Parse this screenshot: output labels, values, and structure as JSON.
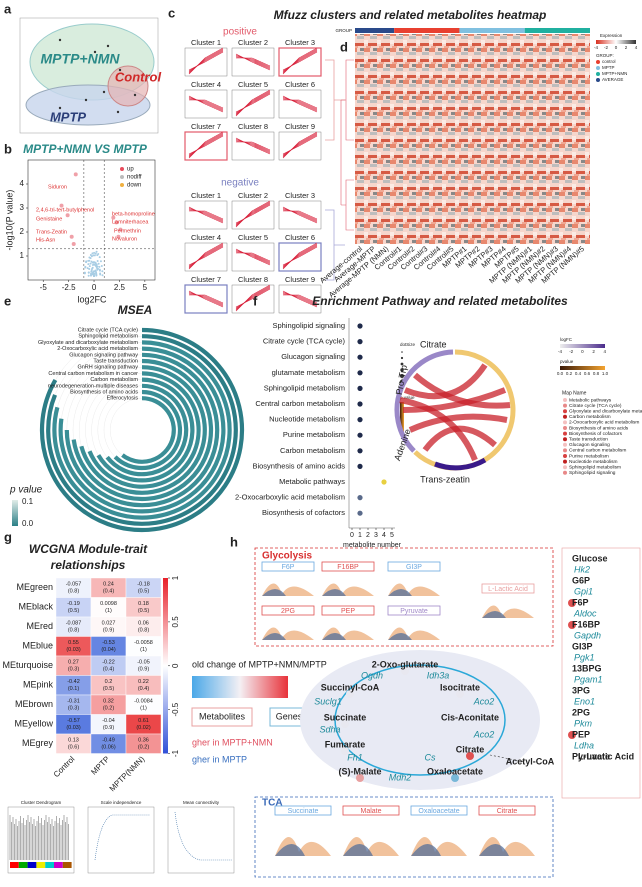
{
  "a": {
    "letter": "a",
    "groups": [
      "MPTP+NMN",
      "Control",
      "MPTP"
    ]
  },
  "b": {
    "letter": "b",
    "title": "MPTP+NMN VS MPTP",
    "legend": [
      "up",
      "nodiff",
      "down"
    ],
    "ylabel": "-log10(P value)",
    "xlabel": "log2FC",
    "xlim": [
      -6.5,
      6
    ],
    "ylim": [
      0,
      5
    ],
    "xticks": [
      -5,
      -2.5,
      0,
      2.5,
      5
    ],
    "yticks": [
      1,
      2,
      3,
      4
    ],
    "labels": [
      "Siduron",
      "2,4,6-tri-tert-butylphenol",
      "Genistaine",
      "Trans-Zeatin",
      "His-Asn",
      "beta-homoproline",
      "Lamniterhacea",
      "Permethrin",
      "Novaluron"
    ]
  },
  "c": {
    "letter": "c",
    "title": "Mfuzz clusters and related metabolites heatmap",
    "positive": "positive",
    "negative": "negative",
    "clusters": [
      "Cluster 1",
      "Cluster 2",
      "Cluster 3",
      "Cluster 4",
      "Cluster 5",
      "Cluster 6",
      "Cluster 7",
      "Cluster 8",
      "Cluster 9"
    ]
  },
  "d": {
    "letter": "d",
    "group_label": "GROUP",
    "columns": [
      "Average-control",
      "Average-MPTP",
      "Average-MPTP (NMN)",
      "Control#1",
      "Control#2",
      "Control#3",
      "Control#4",
      "Control#5",
      "MPTP#1",
      "MPTP#2",
      "MPTP#3",
      "MPTP#4",
      "MPTP#5",
      "MPTP (NMN)#1",
      "MPTP (NMN)#2",
      "MPTP (NMN)#3",
      "MPTP (NMN)#4",
      "MPTP (NMN)#5"
    ],
    "legend_title": "Expression",
    "legend_ticks": [
      -4,
      -2,
      0,
      2,
      4
    ],
    "group_title": "GROUP:",
    "groups": [
      "control",
      "MPTP",
      "MPTP+NMN",
      "AVERAGE"
    ]
  },
  "e": {
    "letter": "e",
    "title": "MSEA",
    "pathways": [
      "Citrate cycle (TCA cycle)",
      "Sphingolipid metabolism",
      "Glyoxylate and dicarboxylate metabolism",
      "2-Oxocarboxylic acid metabolism",
      "Glucagon signaling pathway",
      "Taste transduction",
      "GnRH signaling pathway",
      "Central carbon metabolism in cancer",
      "Carbon metabolism",
      "neurodegeneration-multiple diseases",
      "Biosynthesis of amino acids",
      "Efferocytosis"
    ],
    "legend_title": "p value",
    "legend_labels": [
      "0.1",
      "0.0"
    ]
  },
  "f": {
    "letter": "f",
    "title": "Enrichment Pathway and related metabolites",
    "pathways": [
      "Sphingolipid signaling",
      "Citrate cycle (TCA cycle)",
      "Glucagon signaling",
      "glutamate metabolism",
      "Sphingolipid metabolism",
      "Central carbon metabolism",
      "Nucleotide metabolism",
      "Purine metabolism",
      "Carbon metabolism",
      "Biosynthesis of amino acids",
      "Metabolic pathways",
      "2-Oxocarboxylic acid metabolism",
      "Biosynthesis of cofactors"
    ],
    "counts": [
      1,
      1,
      1,
      1,
      1,
      1,
      1,
      1,
      1,
      1,
      4,
      1,
      1
    ],
    "xlim": [
      0,
      5
    ],
    "xticks": [
      0,
      1,
      2,
      3,
      4,
      5
    ],
    "xlabel": "metabolite number",
    "size_title": "dotSize",
    "color_title": "p.value",
    "chord": [
      "Citrate",
      "Pro-Trp",
      "Adenine",
      "Trans-zeatin"
    ],
    "logfc_title": "logFC",
    "logfc_ticks": [
      -4,
      -2,
      0,
      2,
      4
    ],
    "pvalue_title": "pvalue",
    "pvalue_labels": [
      "0.0",
      "0.2",
      "0.4",
      "0.6",
      "0.8",
      "1.0"
    ],
    "map_title": "Map Name",
    "map_names": [
      "Metabolic pathways",
      "Citrate cycle (TCA cycle)",
      "Glyoxylate and dicarboxylate metabolism",
      "Carbon metabolism",
      "2-Oxocarboxylic acid metabolism",
      "Biosynthesis of amino acids",
      "Biosynthesis of cofactors",
      "Taste transduction",
      "Glucagon signaling",
      "Central carbon metabolism",
      "Purine metabolism",
      "Nucleotide metabolism",
      "Sphingolipid metabolism",
      "Sphingolipid signaling"
    ]
  },
  "g": {
    "letter": "g",
    "title": [
      "WCGNA Module-trait",
      "relationships"
    ],
    "columns": [
      "Control",
      "MPTP",
      "MPTP(NMN)"
    ],
    "modules": [
      "MEgreen",
      "MEblack",
      "MEred",
      "MEblue",
      "MEturquoise",
      "MEpink",
      "MEbrown",
      "MEyellow",
      "MEgrey"
    ],
    "cor": [
      [
        -0.057,
        0.24,
        -0.18
      ],
      [
        -0.19,
        0.0098,
        0.18
      ],
      [
        -0.087,
        0.027,
        0.06
      ],
      [
        0.55,
        -0.53,
        -0.0058
      ],
      [
        0.27,
        -0.22,
        -0.05
      ],
      [
        -0.42,
        0.2,
        0.22
      ],
      [
        -0.31,
        0.32,
        -0.0084
      ],
      [
        -0.57,
        -0.04,
        0.61
      ],
      [
        0.13,
        -0.49,
        0.36
      ]
    ],
    "p": [
      [
        "(0.8)",
        "(0.4)",
        "(0.5)"
      ],
      [
        "(0.5)",
        "(1)",
        "(0.5)"
      ],
      [
        "(0.8)",
        "(0.9)",
        "(0.8)"
      ],
      [
        "(0.03)",
        "(0.04)",
        "(1)"
      ],
      [
        "(0.3)",
        "(0.4)",
        "(0.9)"
      ],
      [
        "(0.1)",
        "(0.5)",
        "(0.4)"
      ],
      [
        "(0.3)",
        "(0.2)",
        "(1)"
      ],
      [
        "(0.03)",
        "(0.9)",
        "(0.02)"
      ],
      [
        "(0.6)",
        "(0.06)",
        "(0.2)"
      ]
    ],
    "scale_ticks": [
      1,
      0.5,
      0,
      -0.5,
      -1
    ],
    "subplots": [
      "Cluster Dendrogram",
      "Scale independence",
      "Mean connectivity"
    ]
  },
  "h": {
    "letter": "h",
    "glycolysis_title": "Glycolysis",
    "glycolysis_boxes": [
      "F6P",
      "F16BP",
      "GI3P",
      "L-Lactic Acid",
      "2PG",
      "PEP",
      "Pyruvate"
    ],
    "chain_metabolites": [
      "Glucose",
      "G6P",
      "F6P",
      "F16BP",
      "GI3P",
      "13BPG",
      "3PG",
      "2PG",
      "PEP",
      "Pyruvate",
      "L-Lactic Acid"
    ],
    "chain_genes": [
      "Hk2",
      "Gpi1",
      "Aldoc",
      "Gapdh",
      "Pgk1",
      "Pgam1",
      "Eno1",
      "Pkm",
      "Ldha"
    ],
    "legend_title": "old change of MPTP+NMN/MPTP",
    "legend_metabolites": "Metabolites",
    "legend_genes": "Genes",
    "higher_nmn": "gher in MPTP+NMN",
    "higher_mptp": "gher in MPTP",
    "tca_nodes": [
      "2-Oxo-glutarate",
      "Succinyl-CoA",
      "Isocitrate",
      "Succinate",
      "Cis-Aconitate",
      "Fumarate",
      "Citrate",
      "Acetyl-CoA",
      "(S)-Malate",
      "Oxaloacetate"
    ],
    "tca_genes": [
      "Ogdh",
      "Idh3a",
      "Suclg1",
      "Aco2",
      "Sdha",
      "Aco2",
      "Fh1",
      "Cs",
      "Mdh2"
    ],
    "tca_title": "TCA",
    "tca_boxes": [
      "Succinate",
      "Malate",
      "Oxaloacetate",
      "Citrate"
    ]
  }
}
